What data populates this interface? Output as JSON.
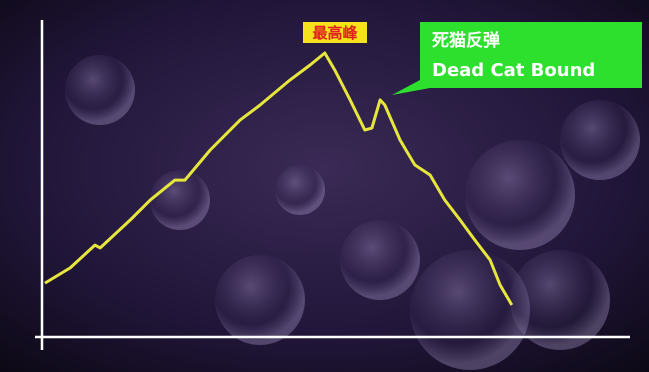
{
  "chart_data": {
    "type": "line",
    "annotations": {
      "peak": "最高峰",
      "callout_zh": "死猫反弹",
      "callout_en": "Dead Cat Bound"
    },
    "x": [
      0.5,
      4.8,
      9.0,
      9.9,
      15.0,
      18.4,
      22.6,
      24.3,
      28.6,
      33.7,
      37.1,
      42.2,
      45.6,
      48.1,
      49.8,
      52.4,
      54.9,
      56.1,
      57.5,
      58.3,
      60.9,
      63.4,
      66.0,
      68.5,
      71.1,
      73.6,
      76.2,
      77.9,
      79.9
    ],
    "values": [
      17,
      21.8,
      29.0,
      28.1,
      36.9,
      43.2,
      49.5,
      49.5,
      59.0,
      68.5,
      73.2,
      81.1,
      85.8,
      89.6,
      84.2,
      74.8,
      65.3,
      65.9,
      74.8,
      73.2,
      62.1,
      54.3,
      51.1,
      43.2,
      36.9,
      30.6,
      24.3,
      16.4,
      10.1
    ],
    "color": "#e6e63c",
    "xlim": [
      0,
      100
    ],
    "ylim": [
      0,
      100
    ]
  }
}
